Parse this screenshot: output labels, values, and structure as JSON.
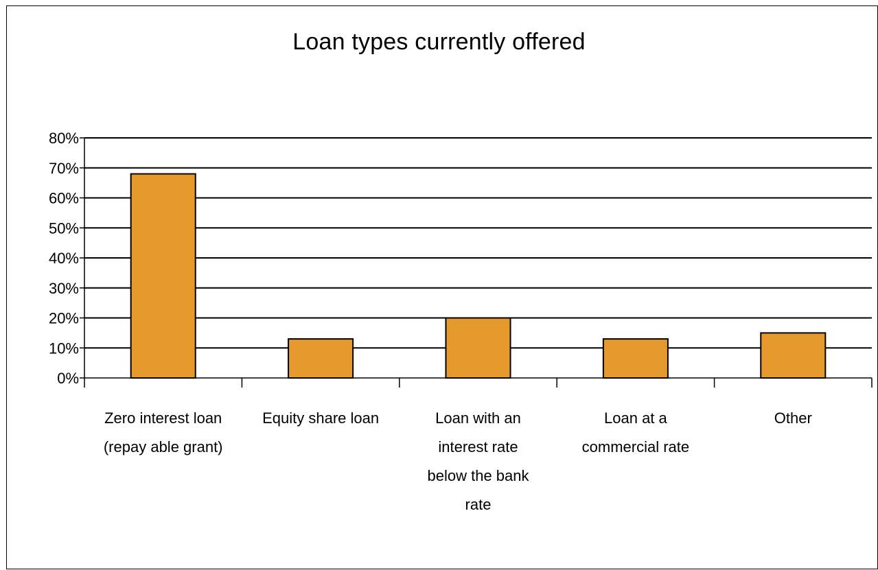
{
  "chart_data": {
    "type": "bar",
    "title": "Loan types currently offered",
    "xlabel": "",
    "ylabel": "",
    "ylim": [
      0,
      0.8
    ],
    "y_tick_format": "percent",
    "y_ticks": [
      "0%",
      "10%",
      "20%",
      "30%",
      "40%",
      "50%",
      "60%",
      "70%",
      "80%"
    ],
    "categories": [
      [
        "Zero interest loan",
        "(repay able grant)"
      ],
      [
        "Equity  share loan"
      ],
      [
        "Loan with an",
        "interest rate",
        "below the bank",
        "rate"
      ],
      [
        "Loan at a",
        "commercial rate"
      ],
      [
        "Other"
      ]
    ],
    "values": [
      0.68,
      0.13,
      0.2,
      0.13,
      0.15
    ],
    "grid": true,
    "legend": "none",
    "colors": {
      "bar": "#E69A2E",
      "bar_edge": "#000000",
      "grid": "#000000"
    }
  }
}
